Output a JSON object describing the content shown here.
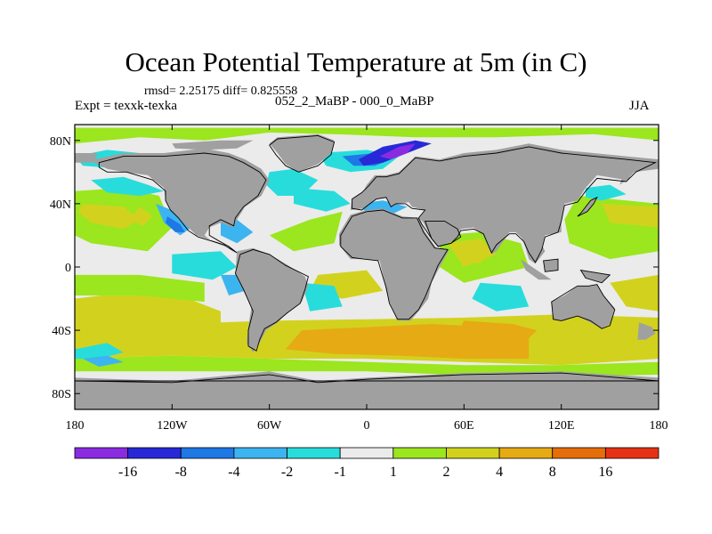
{
  "title": "Ocean Potential Temperature at 5m (in C)",
  "stats": "rmsd= 2.25175  diff= 0.825558",
  "experiment": "Expt = texxk-texka",
  "difference": "052_2_MaBP - 000_0_MaBP",
  "season": "JJA",
  "axes": {
    "lat_ticks": [
      {
        "value": 80,
        "label": "80N"
      },
      {
        "value": 40,
        "label": "40N"
      },
      {
        "value": 0,
        "label": "0"
      },
      {
        "value": -40,
        "label": "40S"
      },
      {
        "value": -80,
        "label": "80S"
      }
    ],
    "lon_ticks": [
      {
        "value": -180,
        "label": "180"
      },
      {
        "value": -120,
        "label": "120W"
      },
      {
        "value": -60,
        "label": "60W"
      },
      {
        "value": 0,
        "label": "0"
      },
      {
        "value": 60,
        "label": "60E"
      },
      {
        "value": 120,
        "label": "120E"
      },
      {
        "value": 180,
        "label": "180"
      }
    ],
    "lon_range": [
      -180,
      180
    ],
    "lat_range": [
      -90,
      90
    ]
  },
  "colorbar": {
    "colors": [
      "#8a2be2",
      "#2828d8",
      "#1e78e6",
      "#3cb4f0",
      "#28dcdc",
      "#ebebeb",
      "#9be61e",
      "#d2d21e",
      "#e6aa14",
      "#e66e0a",
      "#e63214"
    ],
    "labels": [
      "-16",
      "-8",
      "-4",
      "-2",
      "-1",
      "1",
      "2",
      "4",
      "8",
      "16"
    ]
  },
  "colors": {
    "land": "#a0a0a0",
    "no_change": "#ebebeb",
    "coastline": "#000000"
  }
}
